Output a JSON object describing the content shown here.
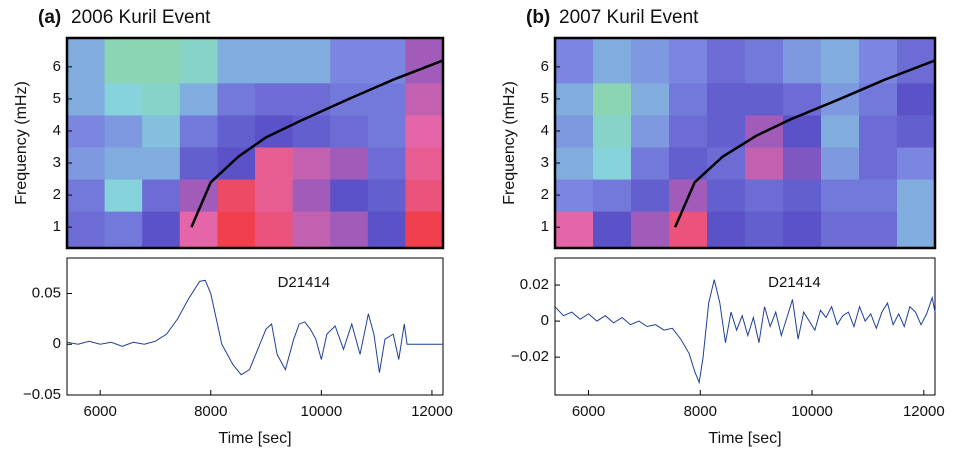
{
  "chart_data": [
    {
      "type": "heatmap",
      "label": "(a)",
      "title": "2006 Kuril Event",
      "ylabel": "Frequency (mHz)",
      "xlim": [
        5400,
        12200
      ],
      "ylim": [
        0.35,
        6.9
      ],
      "yticks": [
        1,
        2,
        3,
        4,
        5,
        6
      ],
      "zlim": [
        0,
        1
      ],
      "colorscale": [
        "#8fd48c",
        "#86d3dc",
        "#7b86e0",
        "#5c52c8",
        "#e466a8",
        "#f0404e"
      ],
      "xedges": [
        5400,
        6080,
        6760,
        7440,
        8120,
        8800,
        9480,
        10160,
        10840,
        11520,
        12200
      ],
      "yedges": [
        0.35,
        1.5,
        2.5,
        3.5,
        4.5,
        5.5,
        6.9
      ],
      "z": [
        [
          0.5,
          0.45,
          0.6,
          0.8,
          1.0,
          0.9,
          0.75,
          0.7,
          0.6,
          1.0
        ],
        [
          0.45,
          0.2,
          0.5,
          0.7,
          0.95,
          0.85,
          0.7,
          0.6,
          0.55,
          0.9
        ],
        [
          0.35,
          0.3,
          0.3,
          0.55,
          0.6,
          0.85,
          0.75,
          0.7,
          0.5,
          0.85
        ],
        [
          0.4,
          0.35,
          0.25,
          0.45,
          0.55,
          0.6,
          0.55,
          0.5,
          0.45,
          0.8
        ],
        [
          0.3,
          0.2,
          0.15,
          0.3,
          0.45,
          0.5,
          0.5,
          0.45,
          0.45,
          0.75
        ],
        [
          0.3,
          0.1,
          0.1,
          0.15,
          0.3,
          0.3,
          0.3,
          0.4,
          0.4,
          0.7
        ]
      ],
      "curve": {
        "color": "#000000",
        "x": [
          7650,
          8000,
          8500,
          9000,
          9600,
          10500,
          11300,
          12200
        ],
        "y": [
          1,
          2.4,
          3.2,
          3.8,
          4.3,
          5.0,
          5.6,
          6.2
        ]
      }
    },
    {
      "type": "line",
      "annotation": "D21414",
      "xlabel": "Time [sec]",
      "color": "#1f3f99",
      "xlim": [
        5400,
        12200
      ],
      "xticks": [
        6000,
        8000,
        10000,
        12000
      ],
      "ylim": [
        -0.05,
        0.085
      ],
      "yticks": [
        {
          "value": -0.05,
          "label": "−0.05"
        },
        0,
        0.05
      ],
      "x": [
        5400,
        5600,
        5800,
        6000,
        6200,
        6400,
        6600,
        6800,
        7000,
        7200,
        7400,
        7600,
        7800,
        7900,
        8000,
        8100,
        8200,
        8300,
        8400,
        8550,
        8700,
        8850,
        9000,
        9100,
        9200,
        9350,
        9500,
        9600,
        9700,
        9800,
        9900,
        10000,
        10100,
        10250,
        10400,
        10550,
        10700,
        10850,
        10950,
        11050,
        11150,
        11300,
        11400,
        11500,
        11550,
        11700,
        12200
      ],
      "values": [
        0.002,
        0,
        0.003,
        0,
        0.002,
        -0.002,
        0.002,
        0,
        0.003,
        0.01,
        0.025,
        0.045,
        0.062,
        0.063,
        0.05,
        0.025,
        0,
        -0.01,
        -0.02,
        -0.03,
        -0.025,
        -0.005,
        0.015,
        0.02,
        -0.01,
        -0.025,
        0.005,
        0.02,
        0.022,
        0.015,
        0.005,
        -0.015,
        0.01,
        0.018,
        -0.005,
        0.02,
        -0.01,
        0.03,
        0.01,
        -0.028,
        0.005,
        0.01,
        -0.015,
        0.02,
        0,
        0,
        0
      ]
    },
    {
      "type": "heatmap",
      "label": "(b)",
      "title": "2007 Kuril Event",
      "ylabel": "Frequency (mHz)",
      "xlim": [
        5400,
        12200
      ],
      "ylim": [
        0.35,
        6.9
      ],
      "yticks": [
        1,
        2,
        3,
        4,
        5,
        6
      ],
      "zlim": [
        0,
        1
      ],
      "colorscale": [
        "#8fd48c",
        "#86d3dc",
        "#7b86e0",
        "#5c52c8",
        "#e466a8",
        "#f0404e"
      ],
      "xedges": [
        5400,
        6080,
        6760,
        7440,
        8120,
        8800,
        9480,
        10160,
        10840,
        11520,
        12200
      ],
      "yedges": [
        0.35,
        1.5,
        2.5,
        3.5,
        4.5,
        5.5,
        6.9
      ],
      "z": [
        [
          0.8,
          0.6,
          0.7,
          0.9,
          0.6,
          0.55,
          0.6,
          0.5,
          0.5,
          0.3
        ],
        [
          0.4,
          0.45,
          0.55,
          0.7,
          0.55,
          0.5,
          0.55,
          0.45,
          0.45,
          0.3
        ],
        [
          0.3,
          0.2,
          0.45,
          0.55,
          0.5,
          0.75,
          0.65,
          0.35,
          0.5,
          0.4
        ],
        [
          0.35,
          0.15,
          0.35,
          0.5,
          0.55,
          0.7,
          0.6,
          0.3,
          0.5,
          0.55
        ],
        [
          0.3,
          0.1,
          0.3,
          0.45,
          0.55,
          0.55,
          0.5,
          0.35,
          0.45,
          0.6
        ],
        [
          0.4,
          0.3,
          0.35,
          0.4,
          0.5,
          0.45,
          0.35,
          0.3,
          0.4,
          0.5
        ]
      ],
      "curve": {
        "color": "#000000",
        "x": [
          7550,
          7900,
          8400,
          9000,
          9600,
          10500,
          11300,
          12200
        ],
        "y": [
          1,
          2.4,
          3.2,
          3.85,
          4.35,
          5.0,
          5.6,
          6.2
        ]
      }
    },
    {
      "type": "line",
      "annotation": "D21414",
      "xlabel": "Time [sec]",
      "color": "#1f3f99",
      "xlim": [
        5400,
        12200
      ],
      "xticks": [
        6000,
        8000,
        10000,
        12000
      ],
      "ylim": [
        -0.041,
        0.035
      ],
      "yticks": [
        {
          "value": -0.02,
          "label": "−0.02"
        },
        0,
        0.02
      ],
      "x": [
        5400,
        5550,
        5700,
        5850,
        6000,
        6150,
        6300,
        6450,
        6600,
        6750,
        6900,
        7050,
        7200,
        7350,
        7500,
        7650,
        7800,
        7900,
        7980,
        8050,
        8150,
        8250,
        8350,
        8450,
        8550,
        8650,
        8750,
        8850,
        8950,
        9050,
        9150,
        9250,
        9350,
        9450,
        9550,
        9650,
        9750,
        9850,
        9950,
        10050,
        10150,
        10250,
        10350,
        10450,
        10550,
        10650,
        10750,
        10850,
        10950,
        11050,
        11150,
        11250,
        11350,
        11450,
        11550,
        11650,
        11750,
        11850,
        11950,
        12050,
        12150,
        12200
      ],
      "values": [
        0.008,
        0.003,
        0.005,
        0.001,
        0.004,
        0,
        0.003,
        -0.001,
        0.002,
        -0.002,
        0,
        -0.003,
        -0.002,
        -0.005,
        -0.004,
        -0.01,
        -0.018,
        -0.028,
        -0.034,
        -0.02,
        0.01,
        0.023,
        0.01,
        -0.012,
        0.005,
        -0.005,
        0.003,
        -0.008,
        0.002,
        -0.012,
        0.008,
        -0.003,
        0.005,
        -0.008,
        0.002,
        0.012,
        -0.01,
        0.005,
        0,
        -0.005,
        0.006,
        0.002,
        0.008,
        -0.002,
        0.003,
        0.005,
        -0.003,
        0.008,
        0,
        0.004,
        -0.004,
        0.005,
        0.01,
        -0.002,
        0.004,
        -0.003,
        0.008,
        0.005,
        -0.002,
        0.004,
        0.013,
        0.005
      ]
    }
  ]
}
